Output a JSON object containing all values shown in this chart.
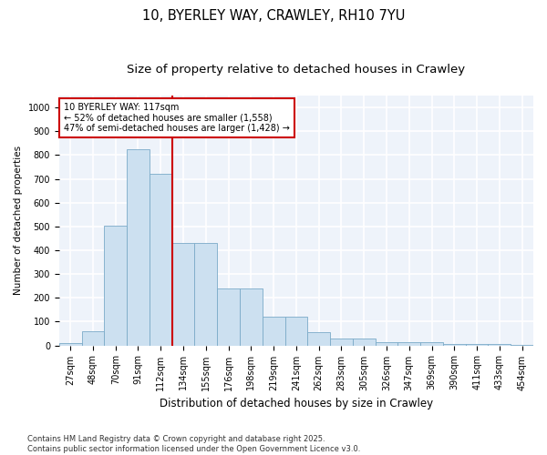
{
  "title": "10, BYERLEY WAY, CRAWLEY, RH10 7YU",
  "subtitle": "Size of property relative to detached houses in Crawley",
  "xlabel": "Distribution of detached houses by size in Crawley",
  "ylabel": "Number of detached properties",
  "categories": [
    "27sqm",
    "48sqm",
    "70sqm",
    "91sqm",
    "112sqm",
    "134sqm",
    "155sqm",
    "176sqm",
    "198sqm",
    "219sqm",
    "241sqm",
    "262sqm",
    "283sqm",
    "305sqm",
    "326sqm",
    "347sqm",
    "369sqm",
    "390sqm",
    "411sqm",
    "433sqm",
    "454sqm"
  ],
  "values": [
    8,
    58,
    505,
    825,
    720,
    430,
    430,
    240,
    240,
    120,
    120,
    55,
    28,
    28,
    12,
    12,
    12,
    5,
    5,
    5,
    2
  ],
  "bar_color": "#cce0f0",
  "bar_edge_color": "#7aaac8",
  "vline_color": "#cc0000",
  "vline_x_index": 4,
  "annotation_text": "10 BYERLEY WAY: 117sqm\n← 52% of detached houses are smaller (1,558)\n47% of semi-detached houses are larger (1,428) →",
  "annotation_box_edgecolor": "#cc0000",
  "background_color": "#eef3fa",
  "grid_color": "#ffffff",
  "ylim": [
    0,
    1050
  ],
  "yticks": [
    0,
    100,
    200,
    300,
    400,
    500,
    600,
    700,
    800,
    900,
    1000
  ],
  "footer": "Contains HM Land Registry data © Crown copyright and database right 2025.\nContains public sector information licensed under the Open Government Licence v3.0.",
  "title_fontsize": 10.5,
  "subtitle_fontsize": 9.5,
  "xlabel_fontsize": 8.5,
  "ylabel_fontsize": 7.5,
  "tick_fontsize": 7,
  "footer_fontsize": 6,
  "annot_fontsize": 7
}
